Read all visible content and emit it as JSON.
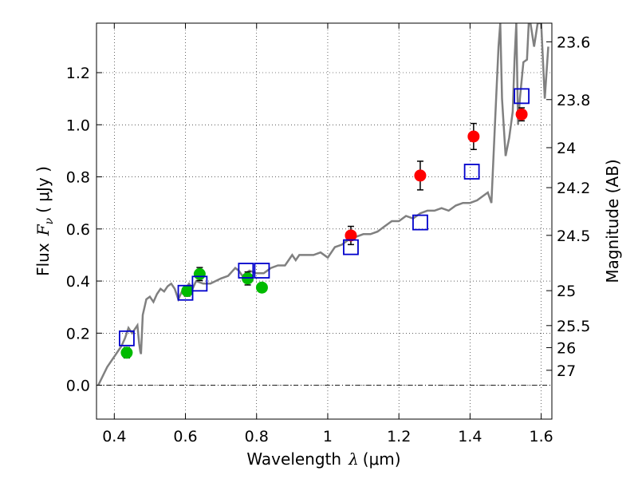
{
  "chart_data": {
    "type": "scatter",
    "title": "",
    "xlabel": "Wavelength",
    "xlabel_symbol": "λ",
    "xlabel_unit": "(μm)",
    "ylabel": "Flux",
    "ylabel_symbol": "F",
    "ylabel_subscript": "ν",
    "ylabel_unit": "( μJy )",
    "y2label": "Magnitude (AB)",
    "xlim": [
      0.35,
      1.63
    ],
    "ylim": [
      -0.13,
      1.39
    ],
    "grid": true,
    "xticks": [
      0.4,
      0.6,
      0.8,
      1.0,
      1.2,
      1.4,
      1.6
    ],
    "xtick_labels": [
      "0.4",
      "0.6",
      "0.8",
      "1",
      "1.2",
      "1.4",
      "1.6"
    ],
    "yticks": [
      0.0,
      0.2,
      0.4,
      0.6,
      0.8,
      1.0,
      1.2
    ],
    "ytick_labels": [
      "0.0",
      "0.2",
      "0.4",
      "0.6",
      "0.8",
      "1.0",
      "1.2"
    ],
    "y2ticks": [
      {
        "label": "23.6",
        "flux": 1.3183
      },
      {
        "label": "23.8",
        "flux": 1.0965
      },
      {
        "label": "24",
        "flux": 0.912
      },
      {
        "label": "24.2",
        "flux": 0.7586
      },
      {
        "label": "24.5",
        "flux": 0.5754
      },
      {
        "label": "25",
        "flux": 0.3631
      },
      {
        "label": "25.5",
        "flux": 0.2291
      },
      {
        "label": "26",
        "flux": 0.1445
      },
      {
        "label": "27",
        "flux": 0.0575
      }
    ],
    "series": [
      {
        "marker": "circle",
        "color": "#00bb00",
        "points": [
          {
            "x": 0.435,
            "y": 0.125,
            "err": 0.02
          },
          {
            "x": 0.605,
            "y": 0.362,
            "err": 0.02
          },
          {
            "x": 0.64,
            "y": 0.427,
            "err": 0.025
          },
          {
            "x": 0.775,
            "y": 0.41,
            "err": 0.025
          },
          {
            "x": 0.815,
            "y": 0.375,
            "err": 0.015
          }
        ]
      },
      {
        "marker": "circle",
        "color": "#ff0000",
        "points": [
          {
            "x": 1.065,
            "y": 0.575,
            "err": 0.035
          },
          {
            "x": 1.26,
            "y": 0.805,
            "err": 0.055
          },
          {
            "x": 1.41,
            "y": 0.955,
            "err": 0.05
          },
          {
            "x": 1.545,
            "y": 1.04,
            "err": 0.025
          }
        ]
      },
      {
        "marker": "open-square",
        "color": "#0000cc",
        "points": [
          {
            "x": 0.435,
            "y": 0.18
          },
          {
            "x": 0.6,
            "y": 0.355
          },
          {
            "x": 0.64,
            "y": 0.39
          },
          {
            "x": 0.77,
            "y": 0.44
          },
          {
            "x": 0.815,
            "y": 0.44
          },
          {
            "x": 1.065,
            "y": 0.53
          },
          {
            "x": 1.26,
            "y": 0.625
          },
          {
            "x": 1.405,
            "y": 0.82
          },
          {
            "x": 1.545,
            "y": 1.11
          }
        ]
      }
    ],
    "model_spectrum": {
      "color": "#808080",
      "x": [
        0.355,
        0.38,
        0.4,
        0.42,
        0.43,
        0.44,
        0.45,
        0.455,
        0.465,
        0.47,
        0.473,
        0.475,
        0.48,
        0.49,
        0.5,
        0.51,
        0.52,
        0.53,
        0.54,
        0.55,
        0.56,
        0.57,
        0.58,
        0.59,
        0.6,
        0.61,
        0.62,
        0.63,
        0.65,
        0.67,
        0.7,
        0.72,
        0.74,
        0.75,
        0.76,
        0.78,
        0.8,
        0.82,
        0.84,
        0.86,
        0.88,
        0.9,
        0.91,
        0.92,
        0.94,
        0.96,
        0.98,
        1.0,
        1.02,
        1.04,
        1.06,
        1.08,
        1.1,
        1.12,
        1.14,
        1.16,
        1.18,
        1.2,
        1.22,
        1.24,
        1.26,
        1.28,
        1.3,
        1.32,
        1.34,
        1.36,
        1.38,
        1.4,
        1.42,
        1.44,
        1.45,
        1.46,
        1.47,
        1.48,
        1.485,
        1.49,
        1.5,
        1.51,
        1.52,
        1.525,
        1.53,
        1.535,
        1.54,
        1.55,
        1.56,
        1.565,
        1.57,
        1.58,
        1.59,
        1.6,
        1.61,
        1.62
      ],
      "y": [
        0.0,
        0.07,
        0.11,
        0.15,
        0.18,
        0.22,
        0.2,
        0.21,
        0.23,
        0.16,
        0.13,
        0.12,
        0.27,
        0.33,
        0.34,
        0.32,
        0.35,
        0.37,
        0.36,
        0.38,
        0.39,
        0.37,
        0.33,
        0.36,
        0.37,
        0.39,
        0.37,
        0.4,
        0.39,
        0.39,
        0.41,
        0.42,
        0.45,
        0.44,
        0.42,
        0.44,
        0.43,
        0.43,
        0.45,
        0.46,
        0.46,
        0.5,
        0.48,
        0.5,
        0.5,
        0.5,
        0.51,
        0.49,
        0.53,
        0.54,
        0.56,
        0.57,
        0.58,
        0.58,
        0.59,
        0.61,
        0.63,
        0.63,
        0.65,
        0.64,
        0.66,
        0.67,
        0.67,
        0.68,
        0.67,
        0.69,
        0.7,
        0.7,
        0.71,
        0.73,
        0.74,
        0.7,
        1.0,
        1.3,
        1.39,
        1.1,
        0.88,
        0.95,
        1.05,
        1.25,
        1.39,
        1.0,
        1.1,
        1.24,
        1.25,
        1.39,
        1.39,
        1.3,
        1.39,
        1.39,
        1.1,
        1.3
      ]
    }
  }
}
